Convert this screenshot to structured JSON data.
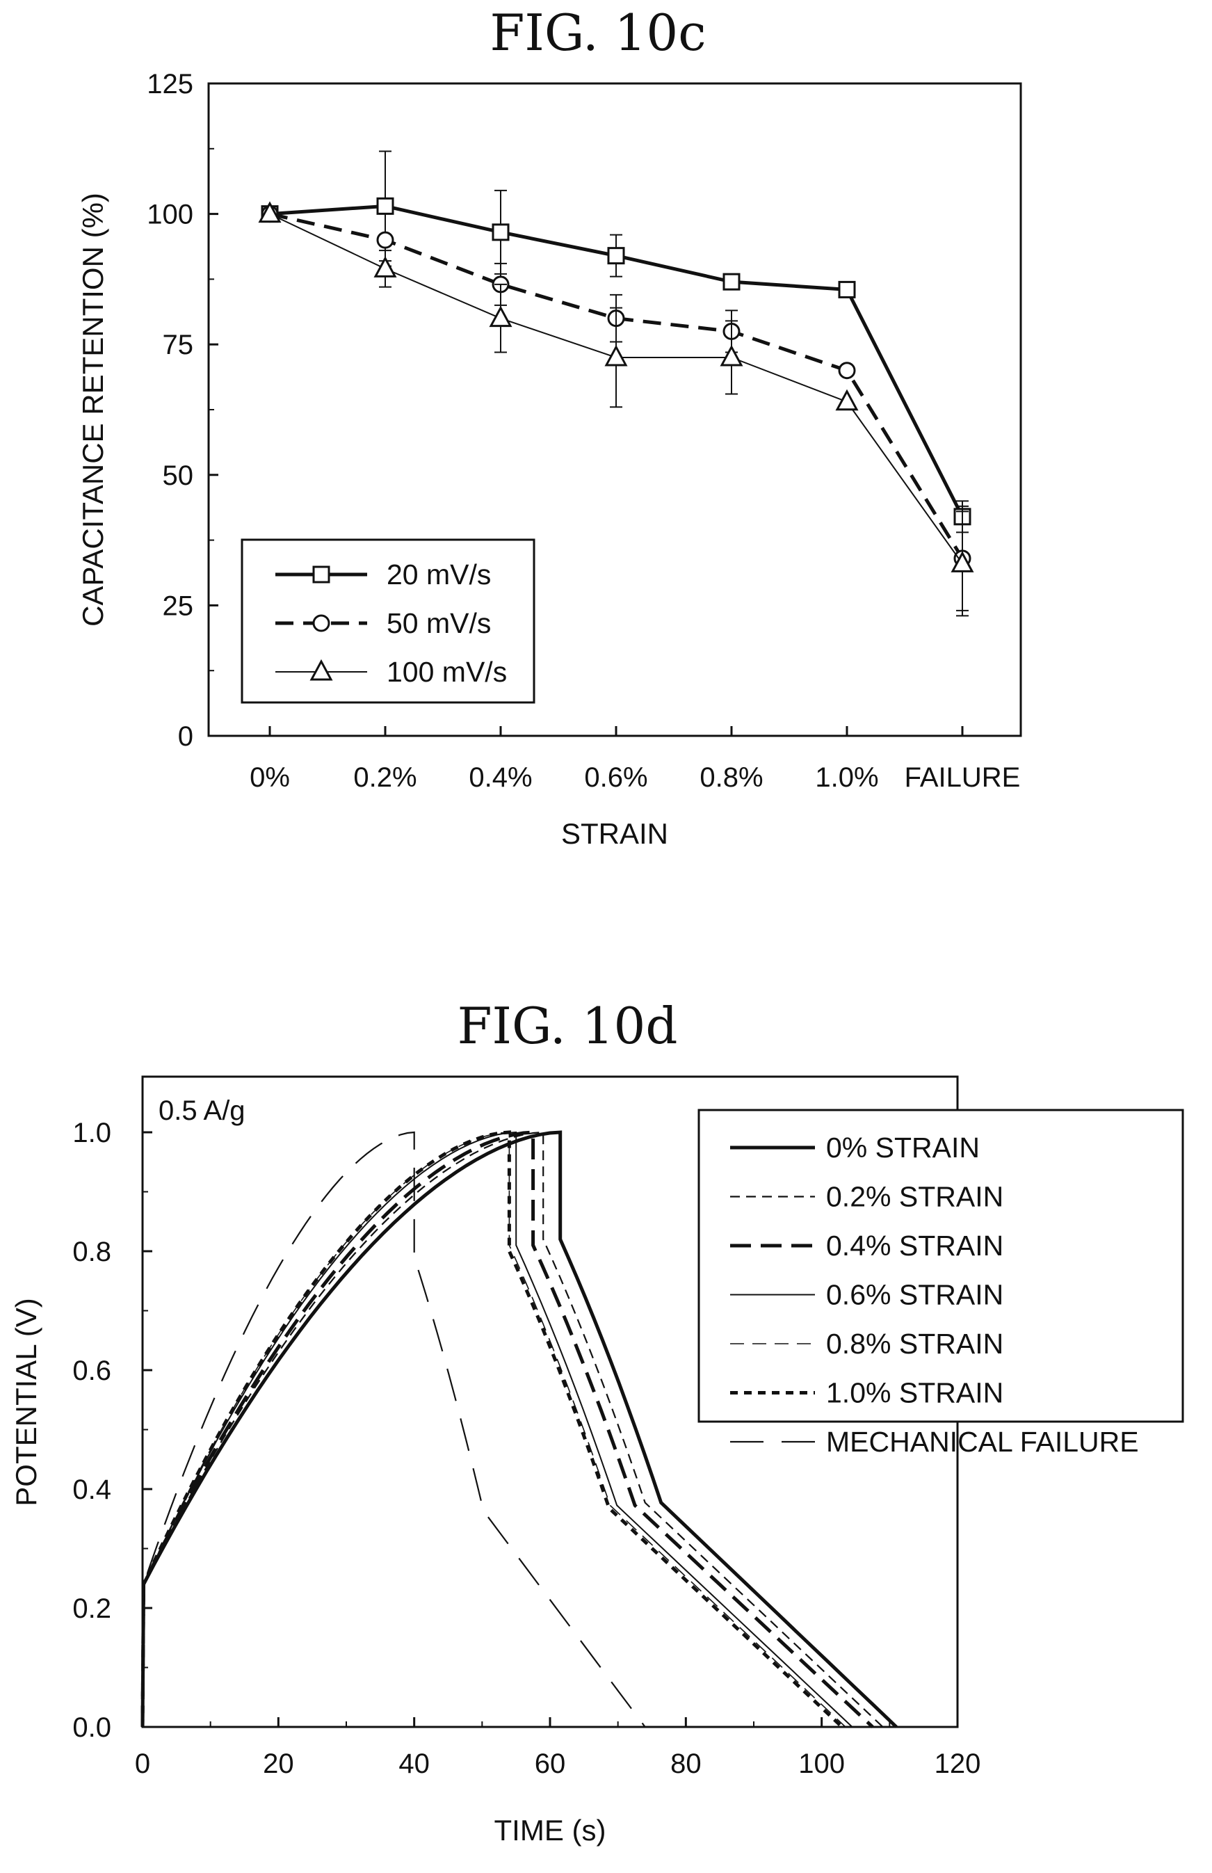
{
  "chart_data": [
    {
      "type": "line",
      "title": "FIG. 10c",
      "xlabel": "STRAIN",
      "ylabel": "CAPACITANCE RETENTION (%)",
      "categories": [
        "0%",
        "0.2%",
        "0.4%",
        "0.6%",
        "0.8%",
        "1.0%",
        "FAILURE"
      ],
      "yticks": [
        "0",
        "25",
        "50",
        "75",
        "100",
        "125"
      ],
      "ylim": [
        0,
        125
      ],
      "grid": false,
      "legend_position": "bottom-left",
      "series": [
        {
          "name": "20 mV/s",
          "marker": "square",
          "line": "solid-thick",
          "values": [
            100,
            101.5,
            96.5,
            92,
            87,
            85.5,
            42
          ],
          "error": [
            0,
            10.5,
            8,
            4,
            0,
            0,
            3
          ]
        },
        {
          "name": "50 mV/s",
          "marker": "circle",
          "line": "dashed-thick",
          "values": [
            100,
            95,
            86.5,
            80,
            77.5,
            70,
            34
          ],
          "error": [
            0,
            5,
            4,
            4.5,
            4,
            0,
            10
          ]
        },
        {
          "name": "100 mV/s",
          "marker": "triangle",
          "line": "solid-thin",
          "values": [
            100,
            89.5,
            80,
            72.5,
            72.5,
            64,
            33
          ],
          "error": [
            0,
            3.5,
            6.5,
            9.5,
            7,
            0,
            10
          ]
        }
      ]
    },
    {
      "type": "line",
      "title": "FIG. 10d",
      "xlabel": "TIME (s)",
      "ylabel": "POTENTIAL (V)",
      "annotation": "0.5 A/g",
      "xlim": [
        0,
        120
      ],
      "ylim": [
        0,
        1.1
      ],
      "xticks": [
        "0",
        "20",
        "40",
        "60",
        "80",
        "100",
        "120"
      ],
      "yticks": [
        "0.0",
        "0.2",
        "0.4",
        "0.6",
        "0.8",
        "1.0"
      ],
      "grid": false,
      "legend_position": "top-right",
      "series": [
        {
          "name": "0% STRAIN",
          "line": "solid-thick",
          "t_peak": 61.5,
          "v_peak": 1.0,
          "v_drop": 0.82,
          "t_end": 111
        },
        {
          "name": "0.2% STRAIN",
          "line": "short-dash",
          "t_peak": 59,
          "v_peak": 1.0,
          "v_drop": 0.82,
          "t_end": 109
        },
        {
          "name": "0.4% STRAIN",
          "line": "long-dash-thick",
          "t_peak": 57.5,
          "v_peak": 1.0,
          "v_drop": 0.81,
          "t_end": 107.5
        },
        {
          "name": "0.6% STRAIN",
          "line": "solid-thin",
          "t_peak": 55,
          "v_peak": 1.0,
          "v_drop": 0.81,
          "t_end": 104.5
        },
        {
          "name": "0.8% STRAIN",
          "line": "dash-thin",
          "t_peak": 54,
          "v_peak": 1.0,
          "v_drop": 0.81,
          "t_end": 103.5
        },
        {
          "name": "1.0% STRAIN",
          "line": "dotted-thick",
          "t_peak": 54,
          "v_peak": 1.0,
          "v_drop": 0.8,
          "t_end": 103
        },
        {
          "name": "MECHANICAL FAILURE",
          "line": "long-dash",
          "t_peak": 40,
          "v_peak": 1.0,
          "v_drop": 0.79,
          "t_end": 74
        }
      ]
    }
  ]
}
